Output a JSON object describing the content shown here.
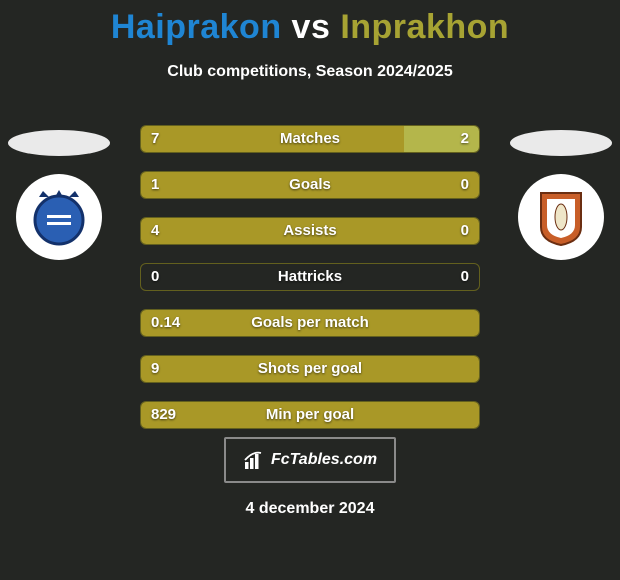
{
  "title": {
    "p1": "Haiprakon",
    "vs": "vs",
    "p2": "Inprakhon"
  },
  "subtitle": "Club competitions, Season 2024/2025",
  "colors": {
    "p1_title": "#1f85d3",
    "p2_title": "#a7a333",
    "bar_main": "#a99827",
    "bar_right": "#b4b64b",
    "bar_border": "#63601e",
    "background": "#242623",
    "badge_left_main": "#2a5fb3",
    "badge_right_main": "#c85e28",
    "badge_right_inner": "#ffffff"
  },
  "stats": [
    {
      "label": "Matches",
      "left_val": "7",
      "right_val": "2",
      "left_pct": 77.8,
      "right_pct": 22.2
    },
    {
      "label": "Goals",
      "left_val": "1",
      "right_val": "0",
      "left_pct": 100,
      "right_pct": 0
    },
    {
      "label": "Assists",
      "left_val": "4",
      "right_val": "0",
      "left_pct": 100,
      "right_pct": 0
    },
    {
      "label": "Hattricks",
      "left_val": "0",
      "right_val": "0",
      "left_pct": 0,
      "right_pct": 0
    },
    {
      "label": "Goals per match",
      "left_val": "0.14",
      "right_val": "",
      "left_pct": 100,
      "right_pct": 0
    },
    {
      "label": "Shots per goal",
      "left_val": "9",
      "right_val": "",
      "left_pct": 100,
      "right_pct": 0
    },
    {
      "label": "Min per goal",
      "left_val": "829",
      "right_val": "",
      "left_pct": 100,
      "right_pct": 0
    }
  ],
  "footer": {
    "brand": "FcTables.com",
    "date": "4 december 2024"
  }
}
